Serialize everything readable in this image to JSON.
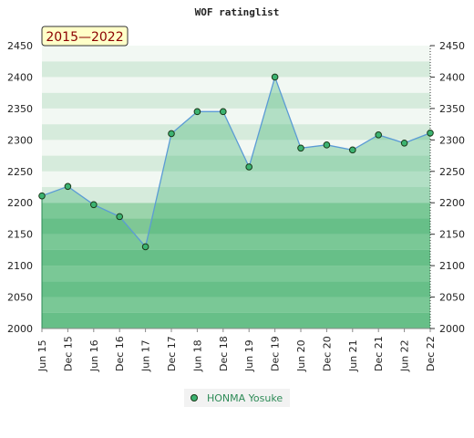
{
  "chart_data": {
    "type": "area",
    "title": "WOF ratinglist",
    "range_label": "2015—2022",
    "categories": [
      "Jun 15",
      "Dec 15",
      "Jun 16",
      "Dec 16",
      "Jun 17",
      "Dec 17",
      "Jun 18",
      "Dec 18",
      "Jun 19",
      "Dec 19",
      "Jun 20",
      "Dec 20",
      "Jun 21",
      "Dec 21",
      "Jun 22",
      "Dec 22"
    ],
    "series": [
      {
        "name": "HONMA Yosuke",
        "values": [
          2211,
          2226,
          2197,
          2178,
          2130,
          2310,
          2345,
          2345,
          2257,
          2400,
          2287,
          2292,
          2284,
          2308,
          2295,
          2311
        ]
      }
    ],
    "ylim": [
      2000,
      2450
    ],
    "yticks": [
      2000,
      2050,
      2100,
      2150,
      2200,
      2250,
      2300,
      2350,
      2400,
      2450
    ],
    "grid": true,
    "legend_position": "bottom",
    "colors": {
      "line": "#5b9bd5",
      "point_fill": "#3cb371",
      "point_stroke": "#1a3a1a",
      "area": "#3cb371",
      "band_dark_low": "#7fc795",
      "band_light_low": "#9bd4ab",
      "band_dark_high": "#d6ebdc",
      "band_light_high": "#f2f8f3",
      "range_bg": "#ffffc8"
    }
  }
}
